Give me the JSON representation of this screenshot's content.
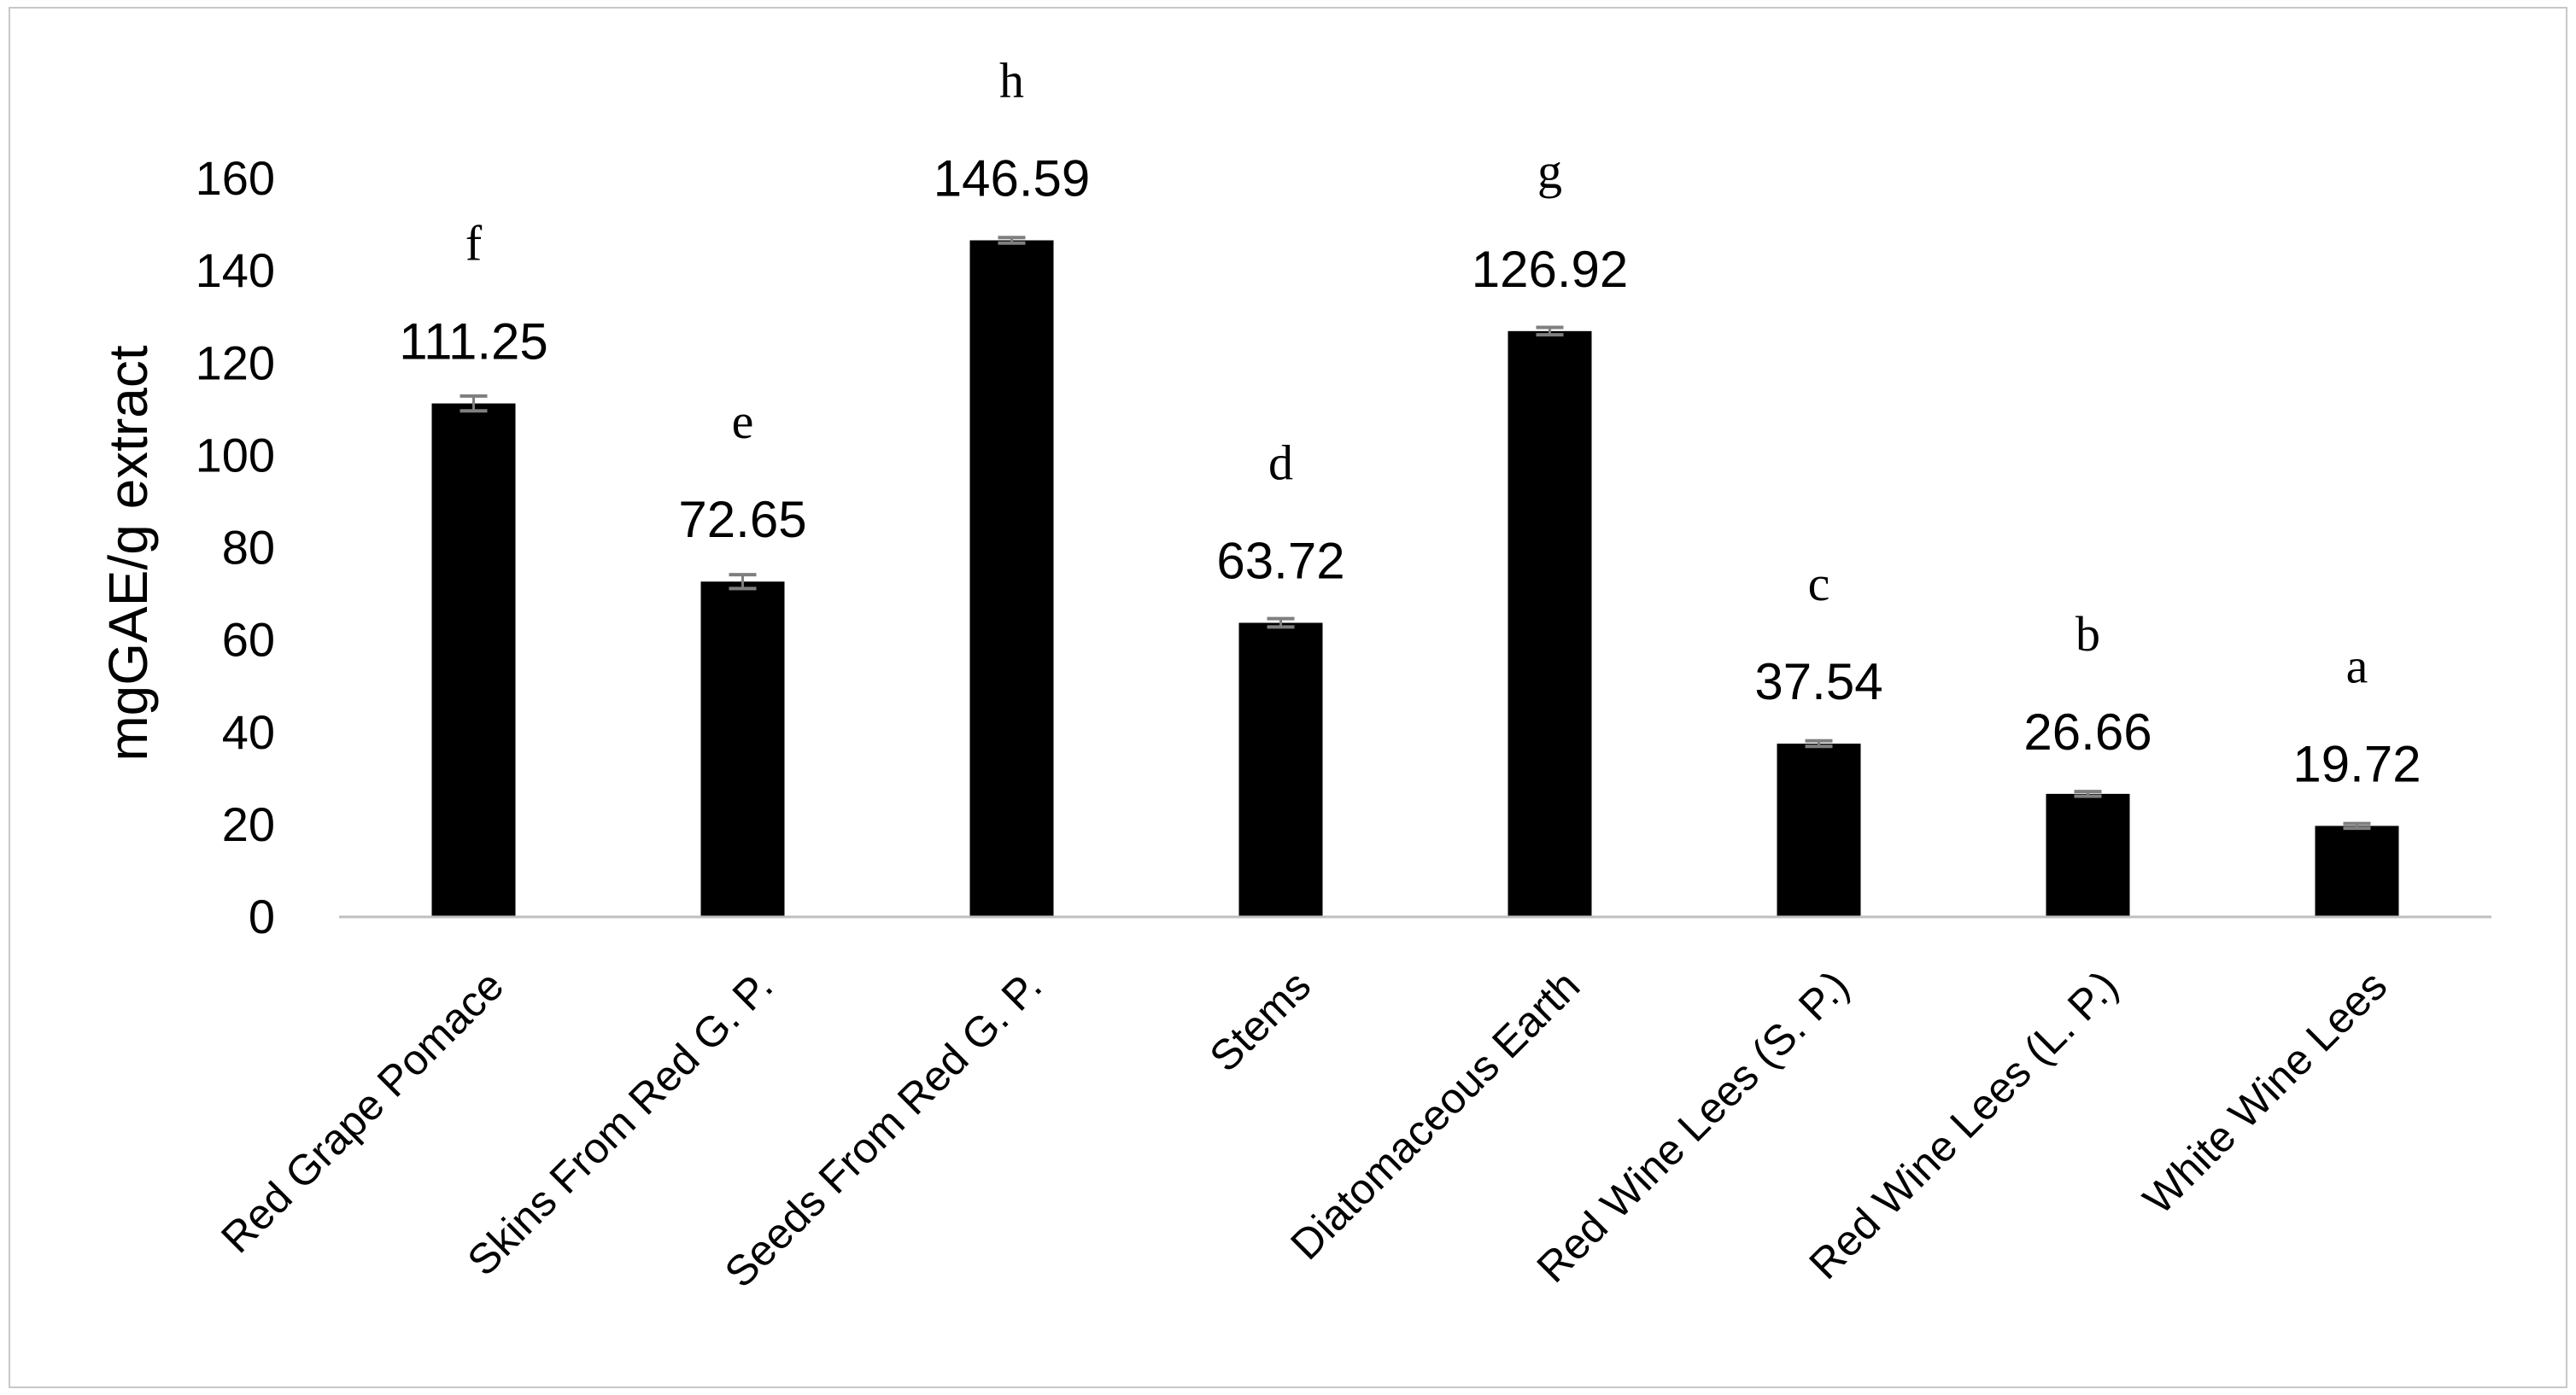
{
  "chart_data": {
    "type": "bar",
    "ylabel": "mgGAE/g extract",
    "xlabel": "",
    "ylim": [
      0,
      160
    ],
    "y_ticks": [
      0,
      20,
      40,
      60,
      80,
      100,
      120,
      140,
      160
    ],
    "grid": false,
    "legend": "none",
    "bar_color": "#000000",
    "categories": [
      "Red Grape Pomace",
      "Skins From Red G. P.",
      "Seeds From Red G. P.",
      "Stems",
      "Diatomaceous Earth",
      "Red Wine Lees (S. P.)",
      "Red Wine Lees (L. P.)",
      "White Wine Lees"
    ],
    "values": [
      111.25,
      72.65,
      146.59,
      63.72,
      126.92,
      37.54,
      26.66,
      19.72
    ],
    "value_labels": [
      "111.25",
      "72.65",
      "146.59",
      "63.72",
      "126.92",
      "37.54",
      "26.66",
      "19.72"
    ],
    "error": [
      1.6,
      1.5,
      0.6,
      0.9,
      0.8,
      0.6,
      0.5,
      0.5
    ],
    "significance_letters": [
      "f",
      "e",
      "h",
      "d",
      "g",
      "c",
      "b",
      "a"
    ]
  }
}
